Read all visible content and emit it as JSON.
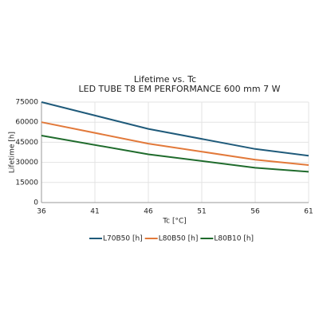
{
  "chart_data": {
    "type": "line",
    "title": "Lifetime vs. Tc",
    "subtitle": "LED TUBE T8 EM PERFORMANCE 600 mm 7 W",
    "x_label": "Tc [°C]",
    "y_label": "Lifetime [h]",
    "x": [
      36,
      46,
      56,
      61
    ],
    "series": [
      {
        "name": "L70B50 [h]",
        "color": "#1f5a7a",
        "values": [
          75000,
          55000,
          40000,
          35000
        ]
      },
      {
        "name": "L80B50 [h]",
        "color": "#e2793a",
        "values": [
          60000,
          44000,
          32000,
          28000
        ]
      },
      {
        "name": "L80B10 [h]",
        "color": "#1f6b2c",
        "values": [
          50000,
          36000,
          26000,
          23000
        ]
      }
    ],
    "xlim": [
      36,
      61
    ],
    "xticks": [
      36,
      41,
      46,
      51,
      56,
      61
    ],
    "ylim": [
      0,
      75000
    ],
    "yticks": [
      0,
      15000,
      30000,
      45000,
      60000,
      75000
    ],
    "grid": true,
    "legend": "bottom"
  }
}
